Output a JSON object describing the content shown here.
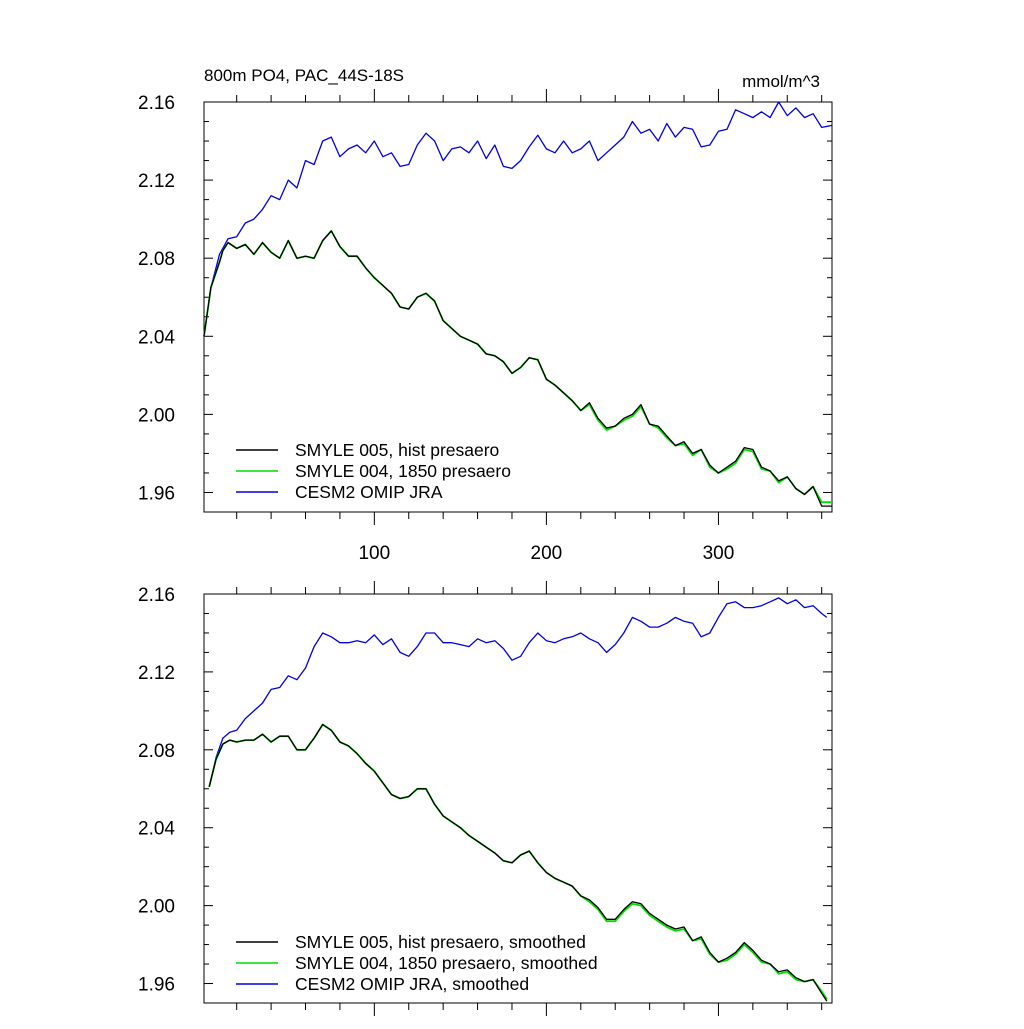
{
  "header": {
    "title": "800m PO4, PAC_44S-18S",
    "units": "mmol/m^3"
  },
  "colors": {
    "hist": "#000000",
    "pre1850": "#00dd00",
    "omip": "#0000e0"
  },
  "chart_data": [
    {
      "type": "line",
      "title": "800m PO4, PAC_44S-18S",
      "units_label": "mmol/m^3",
      "xlim": [
        1,
        366
      ],
      "ylim": [
        1.95,
        2.16
      ],
      "yticks": [
        1.96,
        2.0,
        2.04,
        2.08,
        2.12,
        2.16
      ],
      "ytick_labels": [
        "1.96",
        "2.00",
        "2.04",
        "2.08",
        "2.12",
        "2.16"
      ],
      "xticks": [
        100,
        200,
        300
      ],
      "xtick_labels": [
        "100",
        "200",
        "300"
      ],
      "legend": [
        "SMYLE 005, hist presaero",
        "SMYLE 004, 1850 presaero",
        "CESM2 OMIP JRA"
      ],
      "series": [
        {
          "name": "SMYLE 005, hist presaero",
          "color_key": "hist",
          "x": [
            1,
            5,
            10,
            12,
            15,
            20,
            25,
            30,
            35,
            40,
            45,
            50,
            55,
            60,
            65,
            70,
            75,
            80,
            85,
            90,
            95,
            100,
            105,
            110,
            115,
            120,
            125,
            130,
            135,
            140,
            145,
            150,
            155,
            160,
            165,
            170,
            175,
            180,
            185,
            190,
            195,
            200,
            205,
            210,
            215,
            220,
            225,
            230,
            235,
            240,
            245,
            250,
            255,
            260,
            265,
            270,
            275,
            280,
            285,
            290,
            295,
            300,
            305,
            310,
            315,
            320,
            325,
            330,
            335,
            340,
            345,
            350,
            355,
            360,
            366
          ],
          "y": [
            2.04,
            2.065,
            2.078,
            2.084,
            2.088,
            2.085,
            2.087,
            2.082,
            2.088,
            2.083,
            2.08,
            2.089,
            2.08,
            2.081,
            2.08,
            2.089,
            2.094,
            2.086,
            2.081,
            2.081,
            2.075,
            2.07,
            2.066,
            2.062,
            2.055,
            2.054,
            2.06,
            2.062,
            2.058,
            2.048,
            2.044,
            2.04,
            2.038,
            2.036,
            2.031,
            2.03,
            2.027,
            2.021,
            2.024,
            2.029,
            2.028,
            2.018,
            2.015,
            2.011,
            2.007,
            2.002,
            2.006,
            1.998,
            1.993,
            1.994,
            1.998,
            2.0,
            2.005,
            1.995,
            1.994,
            1.989,
            1.984,
            1.986,
            1.98,
            1.982,
            1.974,
            1.97,
            1.973,
            1.976,
            1.983,
            1.982,
            1.973,
            1.971,
            1.966,
            1.968,
            1.962,
            1.959,
            1.963,
            1.953,
            1.953
          ]
        },
        {
          "name": "SMYLE 004, 1850 presaero",
          "color_key": "pre1850",
          "x": [
            1,
            5,
            10,
            12,
            15,
            20,
            25,
            30,
            35,
            40,
            45,
            50,
            55,
            60,
            65,
            70,
            75,
            80,
            85,
            90,
            95,
            100,
            105,
            110,
            115,
            120,
            125,
            130,
            135,
            140,
            145,
            150,
            155,
            160,
            165,
            170,
            175,
            180,
            185,
            190,
            195,
            200,
            205,
            210,
            215,
            220,
            225,
            230,
            235,
            240,
            245,
            250,
            255,
            260,
            265,
            270,
            275,
            280,
            285,
            290,
            295,
            300,
            305,
            310,
            315,
            320,
            325,
            330,
            335,
            340,
            345,
            350,
            355,
            360,
            366
          ],
          "y": [
            2.04,
            2.065,
            2.078,
            2.084,
            2.088,
            2.085,
            2.087,
            2.082,
            2.088,
            2.083,
            2.08,
            2.089,
            2.08,
            2.081,
            2.08,
            2.089,
            2.094,
            2.086,
            2.081,
            2.081,
            2.075,
            2.07,
            2.066,
            2.062,
            2.055,
            2.054,
            2.06,
            2.062,
            2.058,
            2.048,
            2.044,
            2.04,
            2.038,
            2.036,
            2.031,
            2.03,
            2.027,
            2.021,
            2.024,
            2.029,
            2.028,
            2.018,
            2.015,
            2.011,
            2.007,
            2.002,
            2.005,
            1.997,
            1.992,
            1.994,
            1.997,
            1.999,
            2.004,
            1.995,
            1.993,
            1.988,
            1.984,
            1.985,
            1.979,
            1.982,
            1.973,
            1.97,
            1.972,
            1.975,
            1.982,
            1.981,
            1.972,
            1.971,
            1.965,
            1.968,
            1.962,
            1.959,
            1.963,
            1.955,
            1.955
          ]
        },
        {
          "name": "CESM2 OMIP JRA",
          "color_key": "omip",
          "x": [
            1,
            5,
            10,
            15,
            20,
            25,
            30,
            35,
            40,
            45,
            50,
            55,
            60,
            65,
            70,
            75,
            80,
            85,
            90,
            95,
            100,
            105,
            110,
            115,
            120,
            125,
            130,
            135,
            140,
            145,
            150,
            155,
            160,
            165,
            170,
            175,
            180,
            185,
            190,
            195,
            200,
            205,
            210,
            215,
            220,
            225,
            230,
            235,
            240,
            245,
            250,
            255,
            260,
            265,
            270,
            275,
            280,
            285,
            290,
            295,
            300,
            305,
            310,
            315,
            320,
            325,
            330,
            335,
            340,
            345,
            350,
            355,
            360,
            366
          ],
          "y": [
            2.04,
            2.065,
            2.082,
            2.09,
            2.091,
            2.098,
            2.1,
            2.105,
            2.112,
            2.11,
            2.12,
            2.116,
            2.13,
            2.128,
            2.14,
            2.142,
            2.132,
            2.136,
            2.138,
            2.134,
            2.14,
            2.132,
            2.134,
            2.127,
            2.128,
            2.138,
            2.144,
            2.14,
            2.13,
            2.136,
            2.137,
            2.134,
            2.14,
            2.131,
            2.138,
            2.127,
            2.126,
            2.13,
            2.137,
            2.143,
            2.136,
            2.134,
            2.14,
            2.134,
            2.136,
            2.14,
            2.13,
            2.134,
            2.138,
            2.142,
            2.15,
            2.144,
            2.146,
            2.14,
            2.149,
            2.142,
            2.147,
            2.146,
            2.137,
            2.138,
            2.145,
            2.146,
            2.156,
            2.154,
            2.152,
            2.155,
            2.152,
            2.16,
            2.153,
            2.157,
            2.152,
            2.154,
            2.147,
            2.148
          ]
        }
      ]
    },
    {
      "type": "line",
      "title": "",
      "xlim": [
        1,
        366
      ],
      "ylim": [
        1.95,
        2.16
      ],
      "yticks": [
        1.96,
        2.0,
        2.04,
        2.08,
        2.12,
        2.16
      ],
      "ytick_labels": [
        "1.96",
        "2.00",
        "2.04",
        "2.08",
        "2.12",
        "2.16"
      ],
      "xticks": [
        100,
        200,
        300
      ],
      "xtick_labels": [
        "100",
        "200",
        "300"
      ],
      "legend": [
        "SMYLE 005, hist presaero, smoothed",
        "SMYLE 004, 1850 presaero, smoothed",
        "CESM2 OMIP JRA, smoothed"
      ],
      "series": [
        {
          "name": "SMYLE 005, hist presaero, smoothed",
          "color_key": "hist",
          "x": [
            4,
            8,
            12,
            16,
            20,
            25,
            30,
            35,
            40,
            45,
            50,
            55,
            60,
            65,
            70,
            75,
            80,
            85,
            90,
            95,
            100,
            105,
            110,
            115,
            120,
            125,
            130,
            135,
            140,
            145,
            150,
            155,
            160,
            165,
            170,
            175,
            180,
            185,
            190,
            195,
            200,
            205,
            210,
            215,
            220,
            225,
            230,
            235,
            240,
            245,
            250,
            255,
            260,
            265,
            270,
            275,
            280,
            285,
            290,
            295,
            300,
            305,
            310,
            315,
            320,
            325,
            330,
            335,
            340,
            345,
            350,
            355,
            360,
            363
          ],
          "y": [
            2.061,
            2.075,
            2.083,
            2.085,
            2.084,
            2.085,
            2.085,
            2.088,
            2.084,
            2.087,
            2.087,
            2.08,
            2.08,
            2.086,
            2.093,
            2.09,
            2.084,
            2.082,
            2.078,
            2.073,
            2.069,
            2.063,
            2.057,
            2.055,
            2.056,
            2.06,
            2.06,
            2.052,
            2.046,
            2.043,
            2.04,
            2.036,
            2.033,
            2.03,
            2.027,
            2.023,
            2.022,
            2.026,
            2.028,
            2.022,
            2.017,
            2.014,
            2.012,
            2.01,
            2.005,
            2.003,
            1.999,
            1.993,
            1.993,
            1.998,
            2.002,
            2.001,
            1.996,
            1.993,
            1.99,
            1.988,
            1.989,
            1.982,
            1.984,
            1.976,
            1.971,
            1.973,
            1.976,
            1.981,
            1.977,
            1.972,
            1.97,
            1.966,
            1.967,
            1.963,
            1.961,
            1.962,
            1.955,
            1.951
          ]
        },
        {
          "name": "SMYLE 004, 1850 presaero, smoothed",
          "color_key": "pre1850",
          "x": [
            4,
            8,
            12,
            16,
            20,
            25,
            30,
            35,
            40,
            45,
            50,
            55,
            60,
            65,
            70,
            75,
            80,
            85,
            90,
            95,
            100,
            105,
            110,
            115,
            120,
            125,
            130,
            135,
            140,
            145,
            150,
            155,
            160,
            165,
            170,
            175,
            180,
            185,
            190,
            195,
            200,
            205,
            210,
            215,
            220,
            225,
            230,
            235,
            240,
            245,
            250,
            255,
            260,
            265,
            270,
            275,
            280,
            285,
            290,
            295,
            300,
            305,
            310,
            315,
            320,
            325,
            330,
            335,
            340,
            345,
            350,
            355,
            360,
            363
          ],
          "y": [
            2.061,
            2.075,
            2.083,
            2.085,
            2.084,
            2.085,
            2.085,
            2.088,
            2.084,
            2.087,
            2.087,
            2.08,
            2.08,
            2.086,
            2.093,
            2.09,
            2.084,
            2.082,
            2.078,
            2.073,
            2.069,
            2.063,
            2.057,
            2.055,
            2.056,
            2.06,
            2.06,
            2.052,
            2.046,
            2.043,
            2.04,
            2.036,
            2.033,
            2.03,
            2.027,
            2.023,
            2.022,
            2.026,
            2.028,
            2.022,
            2.017,
            2.014,
            2.012,
            2.01,
            2.005,
            2.002,
            1.998,
            1.992,
            1.992,
            1.997,
            2.001,
            2.0,
            1.995,
            1.992,
            1.989,
            1.987,
            1.988,
            1.982,
            1.983,
            1.975,
            1.971,
            1.972,
            1.975,
            1.98,
            1.976,
            1.971,
            1.97,
            1.965,
            1.966,
            1.962,
            1.961,
            1.962,
            1.956,
            1.952
          ]
        },
        {
          "name": "CESM2 OMIP JRA, smoothed",
          "color_key": "omip",
          "x": [
            4,
            8,
            12,
            16,
            20,
            25,
            30,
            35,
            40,
            45,
            50,
            55,
            60,
            65,
            70,
            75,
            80,
            85,
            90,
            95,
            100,
            105,
            110,
            115,
            120,
            125,
            130,
            135,
            140,
            145,
            150,
            155,
            160,
            165,
            170,
            175,
            180,
            185,
            190,
            195,
            200,
            205,
            210,
            215,
            220,
            225,
            230,
            235,
            240,
            245,
            250,
            255,
            260,
            265,
            270,
            275,
            280,
            285,
            290,
            295,
            300,
            305,
            310,
            315,
            320,
            325,
            330,
            335,
            340,
            345,
            350,
            355,
            360,
            363
          ],
          "y": [
            2.061,
            2.076,
            2.086,
            2.089,
            2.09,
            2.096,
            2.1,
            2.104,
            2.111,
            2.112,
            2.118,
            2.116,
            2.122,
            2.133,
            2.14,
            2.138,
            2.135,
            2.135,
            2.136,
            2.135,
            2.139,
            2.134,
            2.137,
            2.13,
            2.128,
            2.133,
            2.14,
            2.14,
            2.135,
            2.135,
            2.134,
            2.133,
            2.137,
            2.135,
            2.136,
            2.132,
            2.126,
            2.128,
            2.135,
            2.14,
            2.136,
            2.135,
            2.137,
            2.138,
            2.14,
            2.137,
            2.135,
            2.13,
            2.134,
            2.14,
            2.148,
            2.146,
            2.143,
            2.143,
            2.145,
            2.148,
            2.146,
            2.145,
            2.138,
            2.14,
            2.148,
            2.155,
            2.156,
            2.153,
            2.153,
            2.154,
            2.156,
            2.158,
            2.155,
            2.157,
            2.153,
            2.154,
            2.15,
            2.148
          ]
        }
      ]
    }
  ]
}
